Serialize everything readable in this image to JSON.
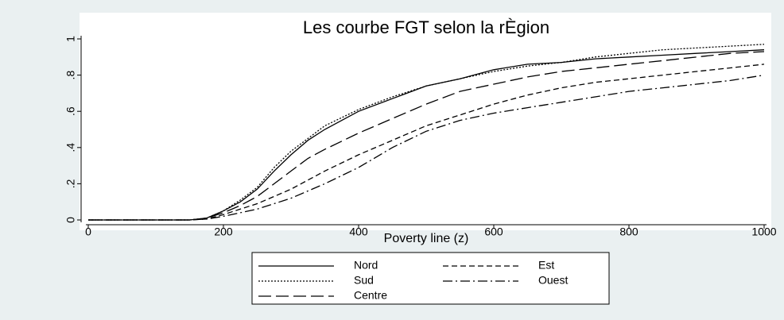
{
  "chart_data": {
    "type": "line",
    "title": "Les courbe FGT selon la rÈgion",
    "x_label": "Poverty line (z)",
    "x": [
      0,
      100,
      150,
      175,
      200,
      225,
      250,
      275,
      300,
      325,
      350,
      400,
      450,
      500,
      550,
      600,
      650,
      700,
      750,
      800,
      850,
      900,
      950,
      1000
    ],
    "series": [
      {
        "name": "Nord",
        "color": "#000000",
        "dash": "solid",
        "values": [
          0,
          0,
          0,
          0.01,
          0.05,
          0.1,
          0.17,
          0.27,
          0.36,
          0.44,
          0.5,
          0.6,
          0.67,
          0.74,
          0.78,
          0.83,
          0.86,
          0.87,
          0.89,
          0.9,
          0.91,
          0.92,
          0.93,
          0.94
        ]
      },
      {
        "name": "Est",
        "color": "#000000",
        "dash": "shortdash",
        "values": [
          0,
          0,
          0,
          0.005,
          0.03,
          0.06,
          0.09,
          0.13,
          0.17,
          0.22,
          0.27,
          0.36,
          0.44,
          0.52,
          0.58,
          0.64,
          0.69,
          0.73,
          0.76,
          0.78,
          0.8,
          0.82,
          0.84,
          0.86
        ]
      },
      {
        "name": "Sud",
        "color": "#000000",
        "dash": "dot",
        "values": [
          0,
          0,
          0,
          0.01,
          0.05,
          0.11,
          0.18,
          0.29,
          0.38,
          0.45,
          0.52,
          0.61,
          0.68,
          0.74,
          0.78,
          0.82,
          0.85,
          0.87,
          0.9,
          0.92,
          0.94,
          0.95,
          0.96,
          0.97
        ]
      },
      {
        "name": "Ouest",
        "color": "#000000",
        "dash": "dashdot",
        "values": [
          0,
          0,
          0,
          0.005,
          0.02,
          0.04,
          0.06,
          0.09,
          0.12,
          0.16,
          0.2,
          0.29,
          0.4,
          0.49,
          0.55,
          0.59,
          0.62,
          0.65,
          0.68,
          0.71,
          0.73,
          0.75,
          0.77,
          0.8
        ]
      },
      {
        "name": "Centre",
        "color": "#000000",
        "dash": "longdash",
        "values": [
          0,
          0,
          0,
          0.01,
          0.04,
          0.08,
          0.13,
          0.2,
          0.27,
          0.34,
          0.39,
          0.48,
          0.56,
          0.64,
          0.71,
          0.75,
          0.79,
          0.82,
          0.84,
          0.86,
          0.88,
          0.9,
          0.92,
          0.93
        ]
      }
    ],
    "xlim": [
      0,
      1000
    ],
    "xticks": [
      0,
      200,
      400,
      600,
      800,
      1000
    ],
    "ylim": [
      0,
      1
    ],
    "yticks": [
      0,
      {
        "value": 0.2,
        "label": ".2"
      },
      {
        "value": 0.4,
        "label": ".4"
      },
      {
        "value": 0.6,
        "label": ".6"
      },
      {
        "value": 0.8,
        "label": ".8"
      },
      1
    ],
    "legend": "bottom",
    "grid": false
  }
}
